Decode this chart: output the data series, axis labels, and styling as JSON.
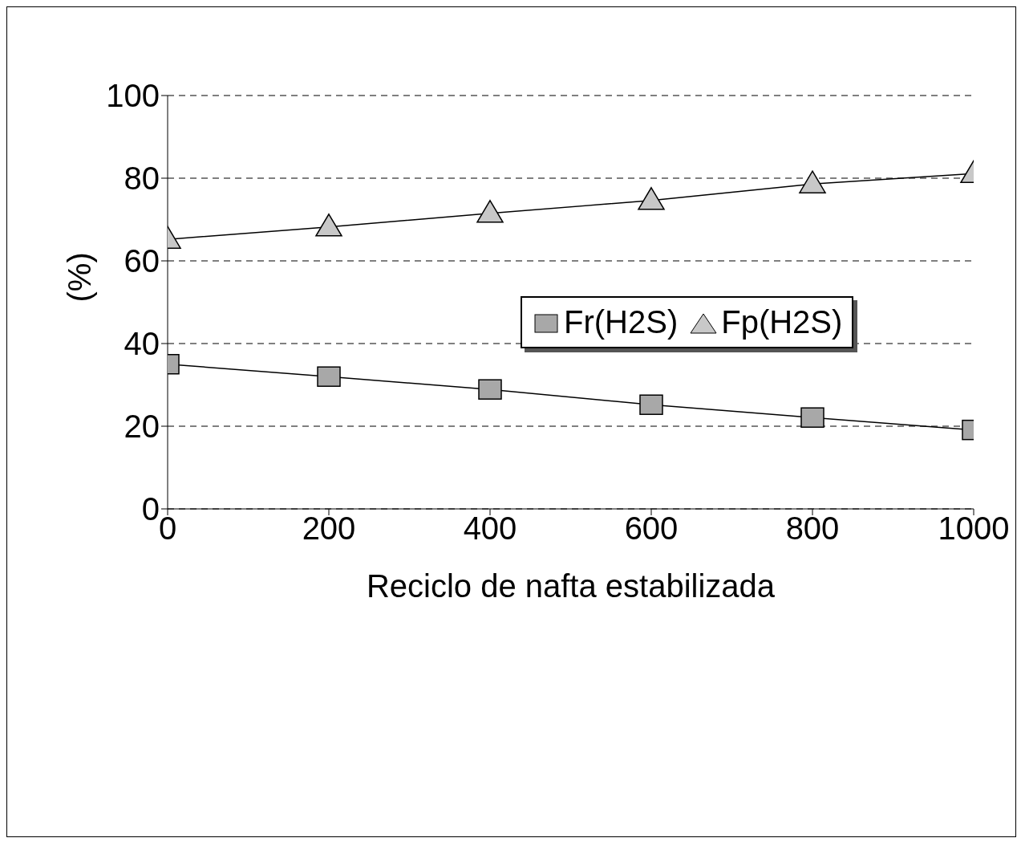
{
  "chart_data": {
    "type": "line",
    "xlabel": "Reciclo de nafta estabilizada",
    "ylabel": "(%)",
    "x": [
      0,
      200,
      400,
      600,
      800,
      1000
    ],
    "series": [
      {
        "name": "Fr(H2S)",
        "color": "#a8a8a8",
        "marker": "square",
        "values": [
          35,
          32,
          28.9,
          25.2,
          22.1,
          19.1
        ]
      },
      {
        "name": "Fp(H2S)",
        "color": "#c8c8c8",
        "marker": "triangle",
        "values": [
          65.2,
          68.2,
          71.5,
          74.6,
          78.6,
          81.1
        ]
      }
    ],
    "xlim": [
      0,
      1000
    ],
    "xticks": [
      0,
      200,
      400,
      600,
      800,
      1000
    ],
    "ylim": [
      0,
      100
    ],
    "yticks": [
      0,
      20,
      40,
      60,
      80,
      100
    ],
    "grid": "y",
    "legend": "right",
    "line_style": "solid"
  }
}
